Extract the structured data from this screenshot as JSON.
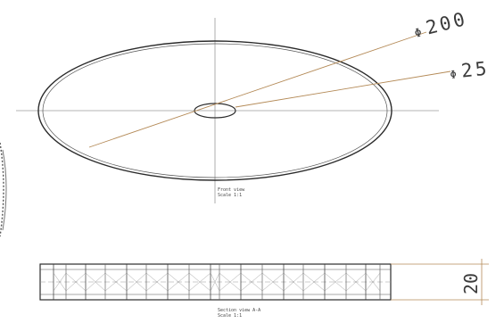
{
  "drawing": {
    "dimensions": {
      "outer_diameter": {
        "symbol": "Φ",
        "value": "200"
      },
      "hub_diameter": {
        "symbol": "Φ",
        "value": "25"
      },
      "thickness": {
        "value": "20"
      }
    },
    "views": {
      "front_view": {
        "title": "Front view",
        "scale": "Scale 1:1"
      },
      "section_view": {
        "title": "Section view A-A",
        "scale": "Scale 1:1"
      }
    },
    "colors": {
      "line": "#2b2b2b",
      "center_line": "#9a9a9a",
      "leader": "#b48a57",
      "dimension_text": "#3b3b3b"
    }
  }
}
